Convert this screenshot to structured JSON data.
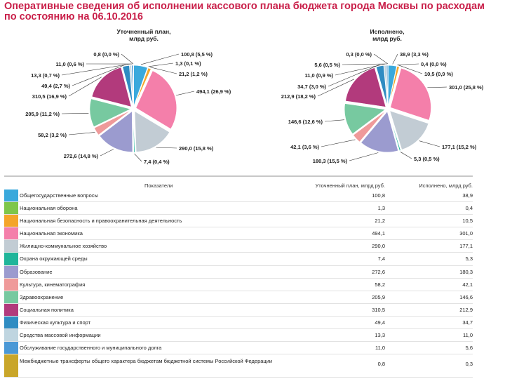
{
  "header": {
    "title": "Оперативные сведения об исполнении кассового плана бюджета города Москвы по расходам по состоянию на 06.10.2016"
  },
  "chart_data": [
    {
      "type": "pie",
      "title": "Уточненный план, млрд руб.",
      "values": [
        100.8,
        1.3,
        21.2,
        494.1,
        290.0,
        7.4,
        272.6,
        58.2,
        205.9,
        310.5,
        49.4,
        13.3,
        11.0,
        0.8
      ],
      "labels": [
        "100,8 (5,5 %)",
        "1,3 (0,1 %)",
        "21,2 (1,2 %)",
        "494,1 (26,9 %)",
        "290,0 (15,8 %)",
        "7,4 (0,4 %)",
        "272,6 (14,8 %)",
        "58,2 (3,2 %)",
        "205,9 (11,2 %)",
        "310,5 (16,9 %)",
        "49,4 (2,7 %)",
        "13,3 (0,7 %)",
        "11,0 (0,6 %)",
        "0,8 (0,0 %)"
      ]
    },
    {
      "type": "pie",
      "title": "Исполнено, млрд руб.",
      "values": [
        38.9,
        0.4,
        10.5,
        301.0,
        177.1,
        5.3,
        180.3,
        42.1,
        146.6,
        212.9,
        34.7,
        11.0,
        5.6,
        0.3
      ],
      "labels": [
        "38,9 (3,3 %)",
        "0,4 (0,0 %)",
        "10,5 (0,9 %)",
        "301,0 (25,8 %)",
        "177,1 (15,2 %)",
        "5,3 (0,5 %)",
        "180,3 (15,5 %)",
        "42,1 (3,6 %)",
        "146,6 (12,6 %)",
        "212,9 (18,2 %)",
        "34,7 (3,0 %)",
        "11,0 (0,9 %)",
        "5,6 (0,5 %)",
        "0,3 (0,0 %)"
      ]
    }
  ],
  "colors": [
    "#3aa9dc",
    "#7ec64a",
    "#f4a52a",
    "#f47faa",
    "#c2ccd4",
    "#1fb59a",
    "#9b9bcf",
    "#ef9a9a",
    "#77c9a0",
    "#b23a7c",
    "#2f8cc2",
    "#bfd5e0",
    "#4a98d6",
    "#c9a62a"
  ],
  "table": {
    "headers": [
      "Показатели",
      "Уточненный план, млрд руб.",
      "Исполнено, млрд руб."
    ],
    "rows": [
      {
        "name": "Общегосударственные вопросы",
        "plan": "100,8",
        "done": "38,9"
      },
      {
        "name": "Национальная оборона",
        "plan": "1,3",
        "done": "0,4"
      },
      {
        "name": "Национальная безопасность и правоохранительная деятельность",
        "plan": "21,2",
        "done": "10,5"
      },
      {
        "name": "Национальная экономика",
        "plan": "494,1",
        "done": "301,0"
      },
      {
        "name": "Жилищно-коммунальное хозяйство",
        "plan": "290,0",
        "done": "177,1"
      },
      {
        "name": "Охрана окружающей среды",
        "plan": "7,4",
        "done": "5,3"
      },
      {
        "name": "Образование",
        "plan": "272,6",
        "done": "180,3"
      },
      {
        "name": "Культура, кинематография",
        "plan": "58,2",
        "done": "42,1"
      },
      {
        "name": "Здравоохранение",
        "plan": "205,9",
        "done": "146,6"
      },
      {
        "name": "Социальная политика",
        "plan": "310,5",
        "done": "212,9"
      },
      {
        "name": "Физическая культура и спорт",
        "plan": "49,4",
        "done": "34,7"
      },
      {
        "name": "Средства массовой информации",
        "plan": "13,3",
        "done": "11,0"
      },
      {
        "name": "Обслуживание государственного и муниципального долга",
        "plan": "11,0",
        "done": "5,6"
      },
      {
        "name": "Межбюджетные трансферты общего характера бюджетам бюджетной системы Российской Федерации",
        "plan": "0,8",
        "done": "0,3"
      }
    ]
  }
}
